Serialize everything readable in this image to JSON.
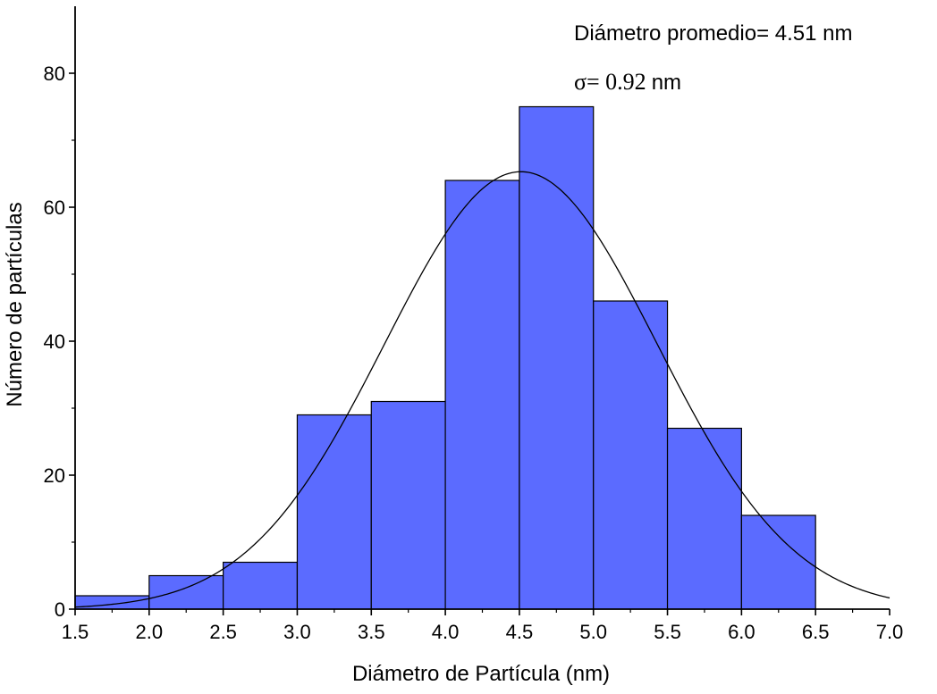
{
  "chart_data": {
    "type": "bar",
    "bins": [
      {
        "x0": 1.5,
        "x1": 2.0,
        "count": 2
      },
      {
        "x0": 2.0,
        "x1": 2.5,
        "count": 5
      },
      {
        "x0": 2.5,
        "x1": 3.0,
        "count": 7
      },
      {
        "x0": 3.0,
        "x1": 3.5,
        "count": 29
      },
      {
        "x0": 3.5,
        "x1": 4.0,
        "count": 31
      },
      {
        "x0": 4.0,
        "x1": 4.5,
        "count": 64
      },
      {
        "x0": 4.5,
        "x1": 5.0,
        "count": 75
      },
      {
        "x0": 5.0,
        "x1": 5.5,
        "count": 46
      },
      {
        "x0": 5.5,
        "x1": 6.0,
        "count": 27
      },
      {
        "x0": 6.0,
        "x1": 6.5,
        "count": 14
      }
    ],
    "fit_curve": {
      "type": "gaussian",
      "mean": 4.51,
      "sigma": 0.92,
      "peak": 65.3
    },
    "xlabel": "Diámetro de Partícula (nm)",
    "ylabel": "Número de partículas",
    "xlim": [
      1.5,
      7.0
    ],
    "ylim": [
      0,
      90
    ],
    "x_ticks": [
      "1.5",
      "2.0",
      "2.5",
      "3.0",
      "3.5",
      "4.0",
      "4.5",
      "5.0",
      "5.5",
      "6.0",
      "6.5",
      "7.0"
    ],
    "y_ticks": [
      "0",
      "20",
      "40",
      "60",
      "80"
    ],
    "annotations": {
      "mean_label": "Diámetro promedio= 4.51 nm",
      "sigma_symbol": "σ",
      "sigma_value": "= 0.92",
      "sigma_unit": "nm"
    },
    "bar_color": "#5b6bff",
    "bar_edge_color": "#000000",
    "curve_color": "#000000",
    "grid": false
  }
}
